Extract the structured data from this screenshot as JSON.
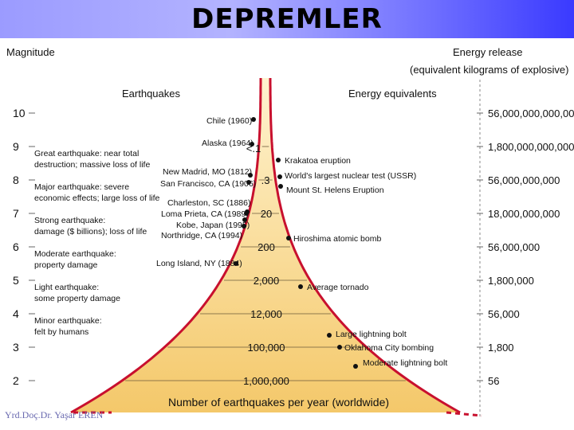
{
  "header": {
    "title": "DEPREMLER"
  },
  "axis": {
    "left_title": "Magnitude",
    "right_title_line1": "Energy release",
    "right_title_line2": "(equivalent kilograms of explosive)",
    "magnitudes": [
      "10",
      "9",
      "8",
      "7",
      "6",
      "5",
      "4",
      "3",
      "2"
    ],
    "energies": [
      "56,000,000,000,000",
      "1,800,000,000,000",
      "56,000,000,000",
      "18,000,000,000",
      "56,000,000",
      "1,800,000",
      "56,000",
      "1,800",
      "56"
    ]
  },
  "sections": {
    "earthquakes": "Earthquakes",
    "energy_equivalents": "Energy equivalents",
    "bottom": "Number of earthquakes per year (worldwide)"
  },
  "categories": [
    {
      "line1": "Great earthquake: near total",
      "line2": "destruction; massive loss of life"
    },
    {
      "line1": "Major earthquake: severe",
      "line2": "economic effects; large loss of life"
    },
    {
      "line1": "Strong earthquake:",
      "line2": "damage ($ billions); loss of life"
    },
    {
      "line1": "Moderate earthquake:",
      "line2": "property damage"
    },
    {
      "line1": "Light earthquake:",
      "line2": "some property damage"
    },
    {
      "line1": "Minor earthquake:",
      "line2": "felt by humans"
    }
  ],
  "counts": [
    "<.1",
    ".3",
    "20",
    "200",
    "2,000",
    "12,000",
    "100,000",
    "1,000,000"
  ],
  "earthquakes": [
    "Chile (1960)",
    "Alaska (1964)",
    "New Madrid, MO (1812)",
    "San Francisco, CA (1906)",
    "Charleston, SC (1886)",
    "Loma Prieta, CA (1989)",
    "Kobe, Japan (1995)",
    "Northridge, CA (1994)",
    "Long Island, NY (1884)"
  ],
  "equivalents": [
    "Krakatoa eruption",
    "World's largest nuclear test (USSR)",
    "Mount St. Helens Eruption",
    "Hiroshima atomic bomb",
    "Average tornado",
    "Large lightning bolt",
    "Oklahoma City bombing",
    "Moderate lightning bolt"
  ],
  "footer": {
    "watermark": "Yrd.Doç.Dr. Yaşar EREN"
  },
  "colors": {
    "curve": "#c8102e",
    "fill_top": "#fff3cf",
    "fill_bottom": "#f4c86a",
    "dot": "#111111"
  }
}
